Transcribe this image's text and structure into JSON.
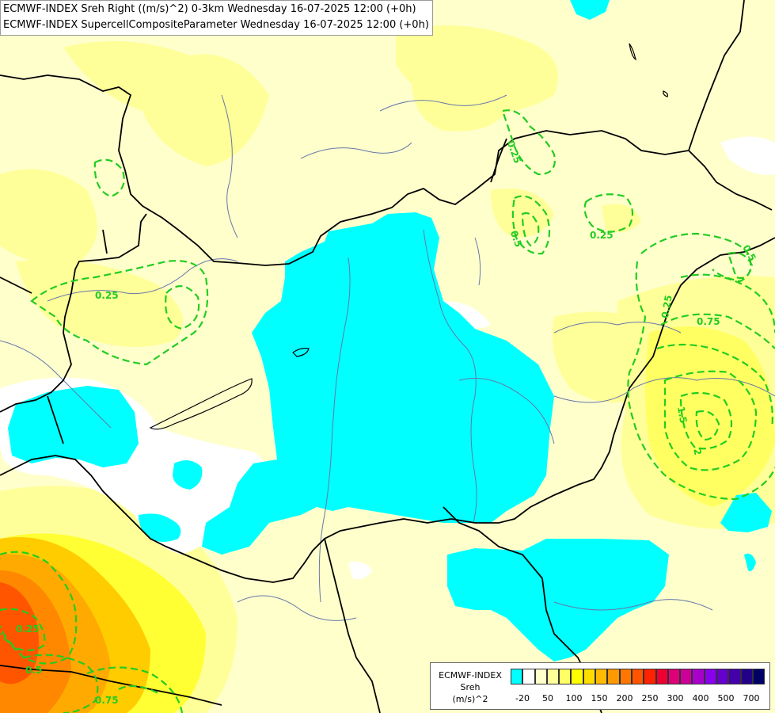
{
  "titles": {
    "line1": "ECMWF-INDEX Sreh Right ((m/s)^2) 0-3km Wednesday 16-07-2025 12:00 (+0h)",
    "line2": "ECMWF-INDEX SupercellCompositeParameter Wednesday 16-07-2025 12:00 (+0h)"
  },
  "legend": {
    "line1": "ECMWF-INDEX",
    "line2": "Sreh",
    "line3": "(m/s)^2",
    "colors": [
      "#00ffff",
      "#ffffff",
      "#ffffcc",
      "#ffff99",
      "#ffff66",
      "#ffff00",
      "#ffdd00",
      "#ffbb00",
      "#ff9900",
      "#ff7700",
      "#ff5500",
      "#ff2200",
      "#ee0033",
      "#dd0077",
      "#cc0099",
      "#aa00cc",
      "#8800ee",
      "#6600cc",
      "#4400aa",
      "#220088",
      "#000066"
    ],
    "tick_labels": [
      "-20",
      "50",
      "100",
      "150",
      "200",
      "250",
      "300",
      "400",
      "500",
      "700"
    ]
  },
  "contour_labels": [
    "0.25",
    "0.25",
    "0.25",
    "0.25",
    "0.5",
    "0.5",
    "0.75",
    "1.5",
    "2",
    "0.25",
    "0.5",
    "0.75"
  ],
  "contour_color": "#22cc22",
  "colors": {
    "background": "#ffffcc",
    "light_yellow": "#ffff99",
    "yellow": "#ffff33",
    "orange": "#ffbb00",
    "red_orange": "#ff5500",
    "cyan": "#00ffff",
    "white": "#ffffff",
    "border_line": "#000000",
    "river_line": "#6677aa"
  }
}
